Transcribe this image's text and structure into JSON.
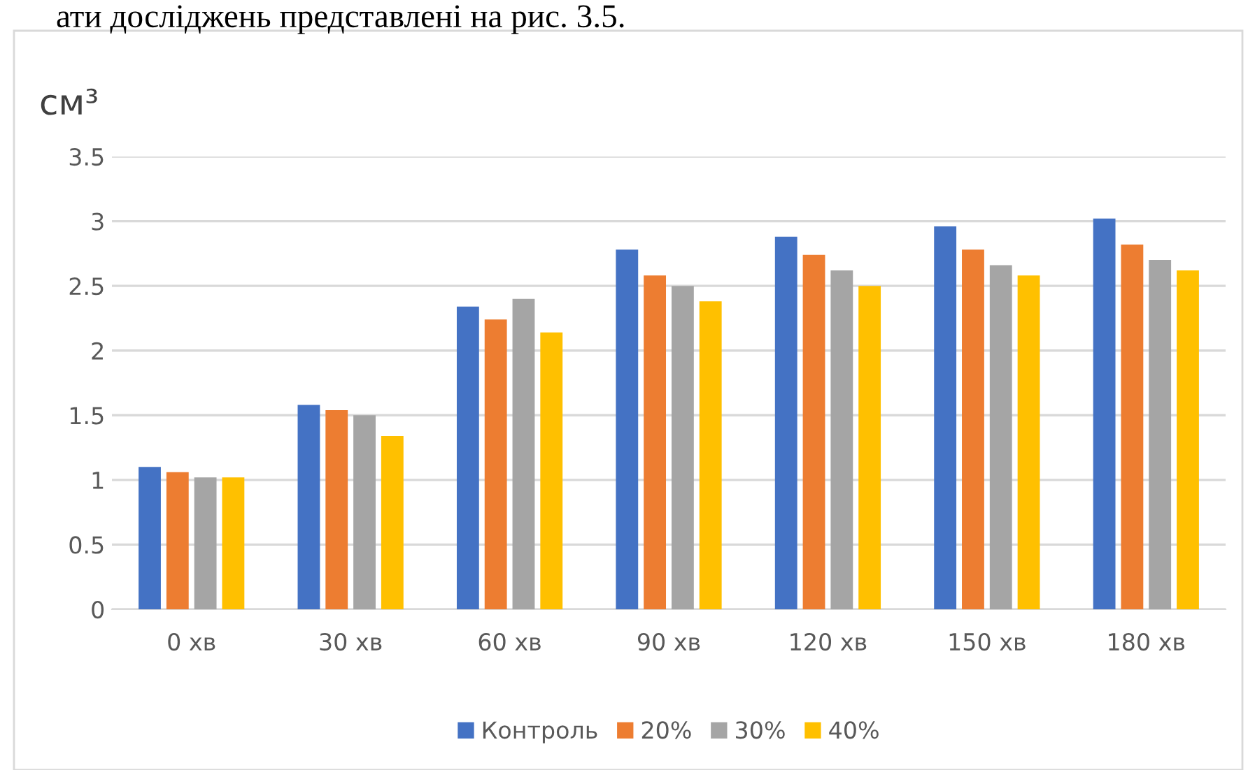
{
  "chart_data": {
    "type": "bar",
    "ylabel": "см³",
    "categories": [
      "0 хв",
      "30 хв",
      "60 хв",
      "90 хв",
      "120 хв",
      "150 хв",
      "180 хв"
    ],
    "series": [
      {
        "name": "Контроль",
        "color": "#4472c4",
        "values": [
          1.1,
          1.58,
          2.34,
          2.78,
          2.88,
          2.96,
          3.02
        ]
      },
      {
        "name": "20%",
        "color": "#ed7d31",
        "values": [
          1.06,
          1.54,
          2.24,
          2.58,
          2.74,
          2.78,
          2.82
        ]
      },
      {
        "name": "30%",
        "color": "#a5a5a5",
        "values": [
          1.02,
          1.5,
          2.4,
          2.5,
          2.62,
          2.66,
          2.7
        ]
      },
      {
        "name": "40%",
        "color": "#ffc000",
        "values": [
          1.02,
          1.34,
          2.14,
          2.38,
          2.5,
          2.58,
          2.62
        ]
      }
    ],
    "ylim": [
      0,
      3.5
    ],
    "yticks": [
      0,
      0.5,
      1,
      1.5,
      2,
      2.5,
      3,
      3.5
    ],
    "grid": "y",
    "legend": "bottom",
    "annotations": [
      "ати досліджень представлені на рис. 3.5."
    ]
  }
}
